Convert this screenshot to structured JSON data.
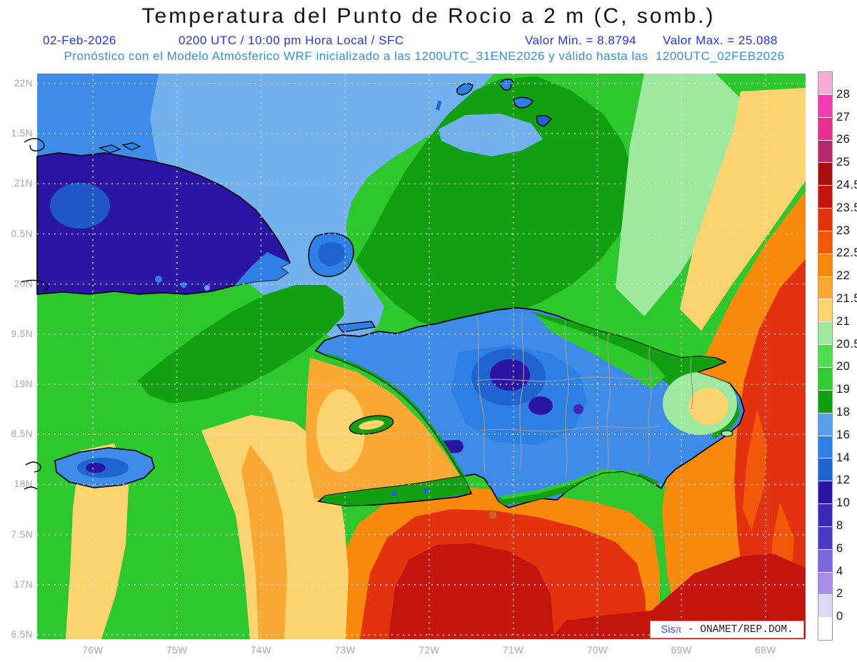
{
  "header": {
    "title": "Temperatura del Punto de Rocio a 2 m (C, somb.)",
    "date": "02-Feb-2026",
    "time_info": "0200 UTC / 10:00 pm Hora Local / SFC",
    "valor_min": "Valor Min. = 8.8794",
    "valor_max": "Valor Max. = 25.088",
    "model_line": "Pronóstico con el Modelo Atmósferico WRF inicializado a las 1200UTC_31ENE2026 y válido hasta las  1200UTC_02FEB2026"
  },
  "map": {
    "lat_labels": [
      "22N",
      "1.5N",
      "21N",
      "0.5N",
      "20N",
      "9.5N",
      "19N",
      "8.5N",
      "18N",
      "7.5N",
      "17N",
      "6.5N"
    ],
    "lon_labels": [
      "76W",
      "75W",
      "74W",
      "73W",
      "72W",
      "71W",
      "70W",
      "69W",
      "68W"
    ],
    "watermark": {
      "prefix": "Sis",
      "pi": "π",
      "suffix": "- ONAMET/REP.DOM."
    }
  },
  "colorbar": {
    "labels": [
      "28",
      "27",
      "26",
      "25",
      "24.5",
      "23.5",
      "23",
      "22.5",
      "22",
      "21.5",
      "21",
      "20.5",
      "20",
      "19",
      "18",
      "16",
      "14",
      "12",
      "10",
      "8",
      "6",
      "4",
      "2",
      "0"
    ],
    "colors": [
      "#F8AFD7",
      "#F23CB4",
      "#E72F8E",
      "#B42968",
      "#A40E0E",
      "#C3140D",
      "#E23210",
      "#F35708",
      "#F8890C",
      "#F9A833",
      "#FBD470",
      "#9FE89F",
      "#4EDE4E",
      "#32CB32",
      "#12A012",
      "#58A0EC",
      "#2F80E4",
      "#1F64D0",
      "#2A15A5",
      "#3B2AB5",
      "#4B3AC6",
      "#7D69DC",
      "#A78FE8",
      "#DDD8F4",
      "#FFFFFF"
    ]
  },
  "colors": {
    "title": "#141414",
    "subtitle_blue": "#2233EE",
    "model_blue": "#2E8FE8",
    "axis_gray": "#A6A6A6",
    "coastline": "#000000",
    "province_border": "#999999",
    "gridline": "#DCDCDC"
  }
}
